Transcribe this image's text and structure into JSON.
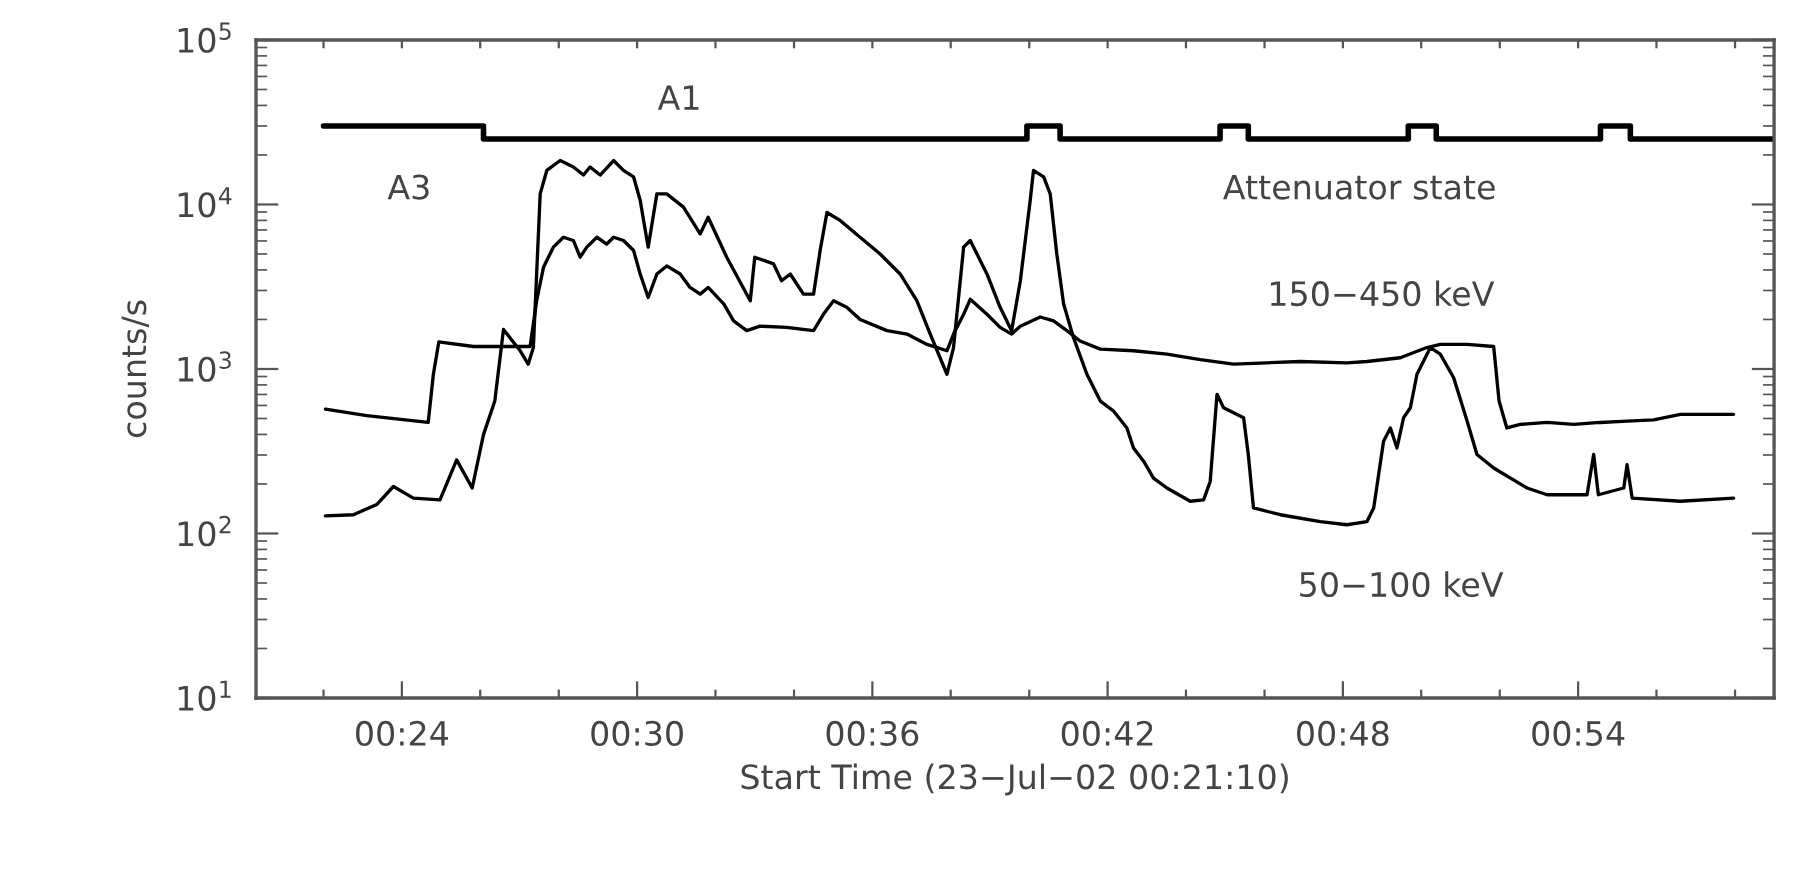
{
  "chart_data": {
    "type": "line",
    "xlabel": "Start Time (23−Jul−02 00:21:10)",
    "ylabel": "counts/s",
    "log": "y",
    "grid": false,
    "xlim": [
      0.338,
      0.9833
    ],
    "ylim": [
      10,
      100000
    ],
    "xticks": [
      {
        "value": 0.3667,
        "label": null
      },
      {
        "value": 0.4,
        "label": "00:24"
      },
      {
        "value": 0.4333,
        "label": null
      },
      {
        "value": 0.4667,
        "label": null
      },
      {
        "value": 0.5,
        "label": "00:30"
      },
      {
        "value": 0.5333,
        "label": null
      },
      {
        "value": 0.5667,
        "label": null
      },
      {
        "value": 0.6,
        "label": "00:36"
      },
      {
        "value": 0.6333,
        "label": null
      },
      {
        "value": 0.6667,
        "label": null
      },
      {
        "value": 0.7,
        "label": "00:42"
      },
      {
        "value": 0.7333,
        "label": null
      },
      {
        "value": 0.7667,
        "label": null
      },
      {
        "value": 0.8,
        "label": "00:48"
      },
      {
        "value": 0.8333,
        "label": null
      },
      {
        "value": 0.8667,
        "label": null
      },
      {
        "value": 0.9,
        "label": "00:54"
      },
      {
        "value": 0.9333,
        "label": null
      },
      {
        "value": 0.9667,
        "label": null
      }
    ],
    "yticks": [
      {
        "value": 10,
        "label": "10$^{1}$"
      },
      {
        "value": 100,
        "label": "10$^{2}$"
      },
      {
        "value": 1000,
        "label": "10$^{3}$"
      },
      {
        "value": 10000,
        "label": "10$^{4}$"
      },
      {
        "value": 100000,
        "label": "10$^{5}$"
      }
    ],
    "series": [
      {
        "color": "#000000",
        "x": [
          0.3675,
          0.3794,
          0.3893,
          0.3964,
          0.4049,
          0.4162,
          0.4233,
          0.4299,
          0.4347,
          0.4395,
          0.4432,
          0.4503,
          0.4537,
          0.4559,
          0.4588,
          0.4616,
          0.4673,
          0.4729,
          0.4772,
          0.48,
          0.4843,
          0.49,
          0.4942,
          0.4985,
          0.5013,
          0.5047,
          0.5084,
          0.5126,
          0.5197,
          0.5268,
          0.5302,
          0.5381,
          0.5481,
          0.55,
          0.558,
          0.5614,
          0.5651,
          0.5707,
          0.575,
          0.5778,
          0.5807,
          0.5863,
          0.5948,
          0.6033,
          0.6118,
          0.6189,
          0.6246,
          0.6317,
          0.6345,
          0.6388,
          0.6416,
          0.6487,
          0.6543,
          0.6592,
          0.6629,
          0.6671,
          0.6685,
          0.6728,
          0.6756,
          0.6784,
          0.6813,
          0.6855,
          0.6912,
          0.6969,
          0.7025,
          0.7082,
          0.711,
          0.7153,
          0.7195,
          0.7252,
          0.7351,
          0.7408,
          0.7436,
          0.7465,
          0.7493,
          0.7578,
          0.7598,
          0.762,
          0.7734,
          0.7904,
          0.8017,
          0.8102,
          0.8131,
          0.8173,
          0.8202,
          0.823,
          0.8258,
          0.8287,
          0.8315,
          0.8372,
          0.8414,
          0.8471,
          0.8528,
          0.857,
          0.8641,
          0.8783,
          0.8868,
          0.9038,
          0.9066,
          0.9086,
          0.9194,
          0.9208,
          0.923,
          0.9435,
          0.9661
        ],
        "values": [
          128,
          130,
          150,
          193,
          164,
          160,
          280,
          189,
          399,
          638,
          1740,
          1290,
          1070,
          1350,
          11600,
          16100,
          18500,
          16900,
          15100,
          16900,
          15100,
          18500,
          16100,
          14700,
          10600,
          5500,
          11600,
          11600,
          9640,
          6620,
          8370,
          4780,
          2600,
          4780,
          4350,
          3440,
          3780,
          2850,
          2850,
          5250,
          8940,
          8000,
          6320,
          5000,
          3780,
          2600,
          1630,
          929,
          1350,
          5500,
          6040,
          3780,
          2370,
          1710,
          3440,
          10600,
          16100,
          14700,
          11600,
          5000,
          2480,
          1550,
          929,
          638,
          555,
          438,
          331,
          275,
          217,
          189,
          157,
          160,
          207,
          701,
          581,
          505,
          302,
          143,
          130,
          118,
          113,
          118,
          143,
          364,
          438,
          331,
          505,
          581,
          929,
          1350,
          1230,
          885,
          482,
          302,
          250,
          189,
          172,
          172,
          302,
          172,
          189,
          262,
          164,
          157,
          164
        ]
      },
      {
        "color": "#000000",
        "x": [
          0.3675,
          0.3851,
          0.4063,
          0.4112,
          0.4134,
          0.4157,
          0.4304,
          0.4545,
          0.4573,
          0.4602,
          0.4644,
          0.4687,
          0.4729,
          0.4758,
          0.4786,
          0.4829,
          0.4871,
          0.49,
          0.4942,
          0.4985,
          0.5013,
          0.5047,
          0.5084,
          0.5126,
          0.5183,
          0.5225,
          0.5268,
          0.5302,
          0.5369,
          0.541,
          0.5466,
          0.5523,
          0.5636,
          0.575,
          0.5792,
          0.5835,
          0.5891,
          0.5948,
          0.6062,
          0.6147,
          0.6232,
          0.6317,
          0.6345,
          0.6388,
          0.6416,
          0.6487,
          0.6543,
          0.6592,
          0.6629,
          0.6714,
          0.677,
          0.6827,
          0.6883,
          0.6969,
          0.711,
          0.7252,
          0.7394,
          0.7535,
          0.7677,
          0.7819,
          0.8017,
          0.8102,
          0.8244,
          0.8357,
          0.8414,
          0.8528,
          0.8641,
          0.8664,
          0.8697,
          0.8754,
          0.8868,
          0.8981,
          0.9094,
          0.9208,
          0.9321,
          0.9435,
          0.9548,
          0.9661
        ],
        "values": [
          570,
          520,
          482,
          473,
          929,
          1460,
          1370,
          1370,
          2600,
          4150,
          5500,
          6320,
          6040,
          4780,
          5500,
          6320,
          5750,
          6320,
          6040,
          5250,
          3780,
          2720,
          3780,
          4230,
          3780,
          3130,
          2850,
          3130,
          2480,
          1960,
          1710,
          1820,
          1790,
          1710,
          2150,
          2600,
          2370,
          2000,
          1710,
          1630,
          1410,
          1290,
          1630,
          2150,
          2650,
          2150,
          1790,
          1630,
          1820,
          2070,
          1960,
          1710,
          1480,
          1320,
          1290,
          1230,
          1140,
          1070,
          1090,
          1110,
          1090,
          1110,
          1170,
          1350,
          1410,
          1410,
          1370,
          638,
          438,
          460,
          473,
          460,
          473,
          482,
          491,
          530,
          530,
          530
        ]
      },
      {
        "type": "step",
        "color": "#000000",
        "x": [
          0.3667,
          0.4347,
          0.6657,
          0.6798,
          0.7478,
          0.7598,
          0.8278,
          0.8397,
          0.9095,
          0.9222,
          0.9828
        ],
        "values": [
          30000,
          25000,
          30000,
          25000,
          30000,
          25000,
          30000,
          25000,
          30000,
          25000,
          25000
        ]
      }
    ],
    "annotations": [
      "A1",
      "A3",
      "Attenuator state",
      "150−450 keV",
      "50−100 keV"
    ]
  }
}
